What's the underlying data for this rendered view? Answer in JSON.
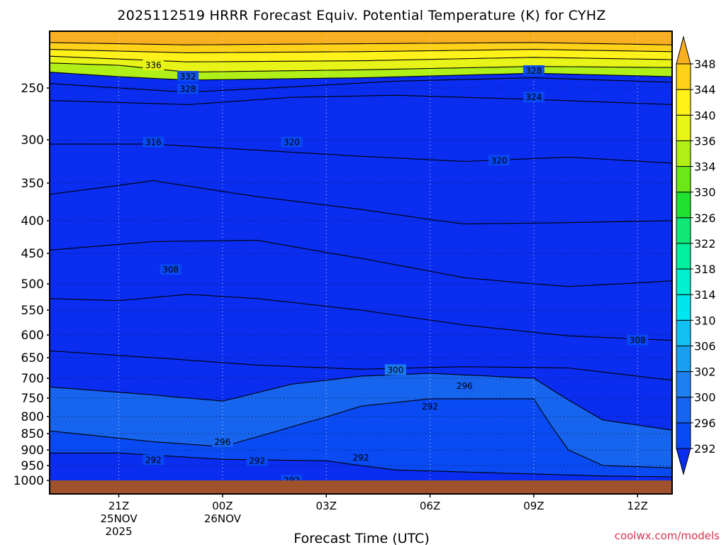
{
  "chart_data": {
    "type": "heatmap",
    "title": "2025112519 HRRR Forecast Equiv. Potential Temperature (K) for CYHZ",
    "xlabel": "Forecast Time (UTC)",
    "ylabel": "",
    "credit": "coolwx.com/models",
    "x_ticks": [
      {
        "hour": 2,
        "label1": "21Z",
        "label2": "25NOV",
        "label3": "2025"
      },
      {
        "hour": 5,
        "label1": "00Z",
        "label2": "26NOV",
        "label3": ""
      },
      {
        "hour": 8,
        "label1": "03Z",
        "label2": "",
        "label3": ""
      },
      {
        "hour": 11,
        "label1": "06Z",
        "label2": "",
        "label3": ""
      },
      {
        "hour": 14,
        "label1": "09Z",
        "label2": "",
        "label3": ""
      },
      {
        "hour": 17,
        "label1": "12Z",
        "label2": "",
        "label3": ""
      }
    ],
    "x_range_hours": [
      0,
      18
    ],
    "y_axis": "pressure (hPa), reversed",
    "y_ticks": [
      250,
      300,
      350,
      400,
      450,
      500,
      550,
      600,
      650,
      700,
      750,
      800,
      850,
      900,
      950,
      1000
    ],
    "y_range": [
      200,
      1000
    ],
    "grid": "dotted",
    "colorbar": {
      "levels": [
        292,
        296,
        300,
        302,
        306,
        310,
        314,
        318,
        322,
        326,
        330,
        334,
        336,
        340,
        344,
        348
      ],
      "colors": [
        "#0a2df0",
        "#0a4af2",
        "#1764ee",
        "#1e7ff0",
        "#1a9ff0",
        "#14c0f2",
        "#00e6f0",
        "#00f0d0",
        "#00f0a0",
        "#12e878",
        "#22e030",
        "#6ce818",
        "#b0f018",
        "#e8f418",
        "#fff21a",
        "#ffd21a",
        "#f8b020"
      ],
      "extends": "both"
    },
    "contours": [
      {
        "level": 348,
        "profile": [
          [
            0,
            210
          ],
          [
            4,
            212
          ],
          [
            9,
            211
          ],
          [
            14,
            210
          ],
          [
            18,
            212
          ]
        ]
      },
      {
        "level": 344,
        "profile": [
          [
            0,
            216
          ],
          [
            4,
            219
          ],
          [
            9,
            218
          ],
          [
            14,
            216
          ],
          [
            18,
            218
          ]
        ]
      },
      {
        "level": 340,
        "profile": [
          [
            0,
            222
          ],
          [
            4,
            227
          ],
          [
            9,
            226
          ],
          [
            14,
            223
          ],
          [
            18,
            225
          ]
        ]
      },
      {
        "level": 336,
        "profile": [
          [
            0,
            228
          ],
          [
            2,
            230
          ],
          [
            4,
            236
          ],
          [
            9,
            234
          ],
          [
            14,
            231
          ],
          [
            18,
            232
          ]
        ]
      },
      {
        "level": 332,
        "profile": [
          [
            0,
            236
          ],
          [
            2,
            240
          ],
          [
            4,
            243
          ],
          [
            9,
            241
          ],
          [
            14,
            237
          ],
          [
            18,
            240
          ]
        ]
      },
      {
        "level": 328,
        "profile": [
          [
            0,
            246
          ],
          [
            2,
            250
          ],
          [
            4,
            254
          ],
          [
            7,
            249
          ],
          [
            10,
            244
          ],
          [
            14,
            241
          ],
          [
            18,
            245
          ]
        ]
      },
      {
        "level": 324,
        "profile": [
          [
            0,
            262
          ],
          [
            4,
            266
          ],
          [
            7,
            259
          ],
          [
            10,
            257
          ],
          [
            14,
            261
          ],
          [
            18,
            266
          ]
        ]
      },
      {
        "level": 320,
        "profile": [
          [
            0,
            305
          ],
          [
            3,
            305
          ],
          [
            6,
            312
          ],
          [
            9,
            319
          ],
          [
            12,
            325
          ],
          [
            15,
            320
          ],
          [
            18,
            327
          ]
        ]
      },
      {
        "level": 316,
        "profile": [
          [
            0,
            365
          ],
          [
            3,
            347
          ],
          [
            6,
            368
          ],
          [
            9,
            385
          ],
          [
            12,
            405
          ],
          [
            15,
            403
          ],
          [
            18,
            400
          ]
        ]
      },
      {
        "level": 312,
        "profile": [
          [
            0,
            445
          ],
          [
            3,
            432
          ],
          [
            6,
            430
          ],
          [
            9,
            458
          ],
          [
            12,
            490
          ],
          [
            15,
            505
          ],
          [
            18,
            495
          ]
        ]
      },
      {
        "level": 308,
        "profile": [
          [
            0,
            528
          ],
          [
            2,
            532
          ],
          [
            4,
            520
          ],
          [
            6,
            528
          ],
          [
            9,
            550
          ],
          [
            12,
            580
          ],
          [
            15,
            602
          ],
          [
            18,
            612
          ]
        ]
      },
      {
        "level": 304,
        "profile": [
          [
            0,
            635
          ],
          [
            3,
            650
          ],
          [
            6,
            668
          ],
          [
            9,
            678
          ],
          [
            12,
            672
          ],
          [
            15,
            675
          ],
          [
            18,
            705
          ]
        ]
      },
      {
        "level": 300,
        "profile": [
          [
            0,
            722
          ],
          [
            3,
            742
          ],
          [
            5,
            758
          ],
          [
            7,
            715
          ],
          [
            9,
            695
          ],
          [
            11,
            688
          ],
          [
            14,
            700
          ],
          [
            16,
            810
          ],
          [
            18,
            840
          ]
        ]
      },
      {
        "level": 296,
        "profile": [
          [
            0,
            842
          ],
          [
            3,
            875
          ],
          [
            5,
            890
          ],
          [
            7,
            830
          ],
          [
            9,
            772
          ],
          [
            11,
            752
          ],
          [
            13,
            752
          ],
          [
            14,
            752
          ],
          [
            15,
            900
          ],
          [
            16,
            950
          ],
          [
            18,
            958
          ]
        ]
      },
      {
        "level": 292,
        "profile": [
          [
            0,
            910
          ],
          [
            2,
            910
          ],
          [
            5,
            930
          ],
          [
            8,
            935
          ],
          [
            10,
            965
          ],
          [
            13,
            975
          ],
          [
            16,
            985
          ],
          [
            18,
            988
          ]
        ]
      }
    ],
    "contour_labels": [
      {
        "level": 336,
        "hour": 3.0,
        "p": 230
      },
      {
        "level": 332,
        "hour": 4.0,
        "p": 240
      },
      {
        "level": 328,
        "hour": 4.0,
        "p": 251
      },
      {
        "level": 328,
        "hour": 14.0,
        "p": 235
      },
      {
        "level": 324,
        "hour": 14.0,
        "p": 259
      },
      {
        "level": 320,
        "hour": 7.0,
        "p": 303
      },
      {
        "level": 320,
        "hour": 13.0,
        "p": 324
      },
      {
        "level": 316,
        "hour": 3.0,
        "p": 303
      },
      {
        "level": 308,
        "hour": 3.5,
        "p": 477
      },
      {
        "level": 308,
        "hour": 17.0,
        "p": 612
      },
      {
        "level": 300,
        "hour": 10.0,
        "p": 680
      },
      {
        "level": 296,
        "hour": 12.0,
        "p": 720
      },
      {
        "level": 296,
        "hour": 5.0,
        "p": 876
      },
      {
        "level": 292,
        "hour": 11.0,
        "p": 773
      },
      {
        "level": 292,
        "hour": 3.0,
        "p": 933
      },
      {
        "level": 292,
        "hour": 6.0,
        "p": 935
      },
      {
        "level": 292,
        "hour": 9.0,
        "p": 925
      },
      {
        "level": 292,
        "hour": 7.0,
        "p": 1000
      }
    ]
  }
}
